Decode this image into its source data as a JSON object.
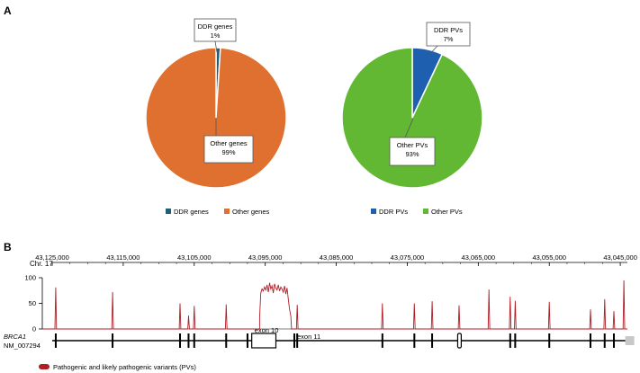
{
  "panel_a_label": "A",
  "panel_b_label": "B",
  "colors": {
    "ddr_genes": "#1f5f7a",
    "other_genes": "#e07030",
    "ddr_pvs": "#1f5fb0",
    "other_pvs": "#62b832",
    "track": "#b01e26",
    "axis": "#000000",
    "exon_fill": "#ffffff",
    "gray_box": "#c8c8c8"
  },
  "chart_data": [
    {
      "type": "pie",
      "name": "genes",
      "slices": [
        {
          "label": "DDR  genes",
          "percent_label": "1%",
          "value": 1
        },
        {
          "label": "Other genes",
          "percent_label": "99%",
          "value": 99
        }
      ],
      "legend": [
        "DDR  genes",
        "Other genes"
      ]
    },
    {
      "type": "pie",
      "name": "pvs",
      "slices": [
        {
          "label": "DDR  PVs",
          "percent_label": "7%",
          "value": 7
        },
        {
          "label": "Other PVs",
          "percent_label": "93%",
          "value": 93
        }
      ],
      "legend": [
        "DDR  PVs",
        "Other PVs"
      ]
    },
    {
      "type": "line",
      "name": "brca1_pv_density",
      "chromosome_label": "Chr. 17",
      "x_ticks": [
        "43,125,000",
        "43,115,000",
        "43,105,000",
        "43,095,000",
        "43,085,000",
        "43,075,000",
        "43,065,000",
        "43,055,000",
        "43,045,000"
      ],
      "x_tick_values": [
        43125000,
        43115000,
        43105000,
        43095000,
        43085000,
        43075000,
        43065000,
        43055000,
        43045000
      ],
      "xlim": [
        43125000,
        43044000
      ],
      "y_ticks": [
        "100",
        "50",
        "0"
      ],
      "ylim": [
        0,
        100
      ],
      "peaks": [
        {
          "x": 43124500,
          "y": 81
        },
        {
          "x": 43116500,
          "y": 72
        },
        {
          "x": 43107000,
          "y": 50
        },
        {
          "x": 43105800,
          "y": 26
        },
        {
          "x": 43105000,
          "y": 45
        },
        {
          "x": 43100500,
          "y": 48
        },
        {
          "x": 43090500,
          "y": 47
        },
        {
          "x": 43078500,
          "y": 50
        },
        {
          "x": 43074000,
          "y": 50
        },
        {
          "x": 43071500,
          "y": 54
        },
        {
          "x": 43067700,
          "y": 46
        },
        {
          "x": 43063500,
          "y": 77
        },
        {
          "x": 43060500,
          "y": 63
        },
        {
          "x": 43059800,
          "y": 55
        },
        {
          "x": 43055000,
          "y": 53
        },
        {
          "x": 43049200,
          "y": 38
        },
        {
          "x": 43047200,
          "y": 58
        },
        {
          "x": 43045900,
          "y": 35
        },
        {
          "x": 43044500,
          "y": 95
        }
      ],
      "plateau": {
        "start": 43095800,
        "end": 43091400,
        "values": [
          22,
          70,
          78,
          74,
          82,
          76,
          86,
          72,
          90,
          78,
          84,
          70,
          88,
          80,
          76,
          86,
          74,
          82,
          78,
          72,
          84,
          68,
          80,
          58,
          38,
          25
        ]
      },
      "gene_label": "BRCA1",
      "transcript_label": "NM_007294",
      "exon_positions": [
        43124500,
        43116500,
        43107000,
        43105800,
        43105000,
        43100500,
        43097500,
        43090500,
        43078500,
        43074000,
        43071500,
        43060500,
        43059800,
        43055000,
        43049200,
        43047200,
        43045900
      ],
      "exon_10": {
        "start": 43096900,
        "end": 43093500,
        "label": "exon 10"
      },
      "exon_11": {
        "x": 43090900,
        "label": "exon 11"
      },
      "exon_box_small": {
        "start": 43067900,
        "end": 43067400
      },
      "utr_box": {
        "start": 43044300,
        "end": 43043200
      },
      "legend": "Pathogenic and likely pathogenic variants (PVs)"
    }
  ]
}
